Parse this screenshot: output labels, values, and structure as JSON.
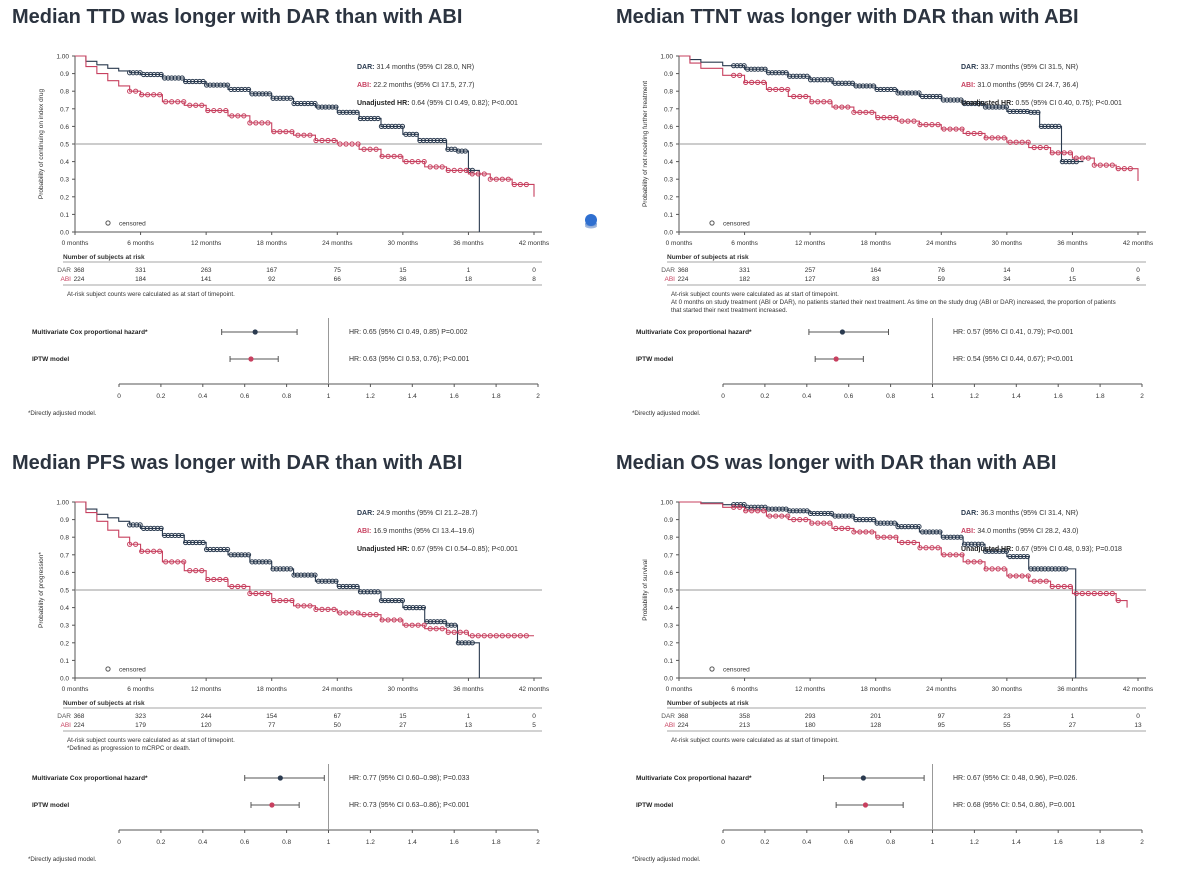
{
  "colors": {
    "dar": "#2a3a4f",
    "abi": "#c7405f",
    "axis": "#555555",
    "ref": "#999999"
  },
  "labels": {
    "censored": "censored",
    "at_risk_header": "Number of subjects at risk",
    "arm_dar": "DAR",
    "arm_abi": "ABI",
    "mvcox": "Multivariate Cox proportional hazard*",
    "iptw": "IPTW model",
    "footnote": "*Directly adjusted model.",
    "atrisk_note": "At-risk subject counts were calculated as at start of timepoint."
  },
  "panels": [
    {
      "title": "Median TTD was longer with DAR than with ABI",
      "ylabel": "Probability of continuing on index drug",
      "legend": [
        {
          "arm": "DAR:",
          "text": " 31.4 months (95% CI 28.0, NR)"
        },
        {
          "arm": "ABI:",
          "text": " 22.2 months (95% CI 17.5, 27.7)"
        },
        {
          "arm": "Unadjusted HR:",
          "text": " 0.64 (95% CI 0.49, 0.82); P<0.001"
        }
      ],
      "chart_data": {
        "type": "line",
        "xlabel": "",
        "ylim": [
          0,
          1
        ],
        "xlim": [
          0,
          42
        ],
        "x_ticks": [
          "0 months",
          "6 months",
          "12 months",
          "18 months",
          "24 months",
          "30 months",
          "36 months",
          "42 months"
        ],
        "series": [
          {
            "name": "DAR",
            "x": [
              0,
              1,
              2,
              3,
              4,
              5,
              6,
              8,
              10,
              12,
              14,
              16,
              18,
              20,
              22,
              24,
              26,
              28,
              30,
              31.4,
              33,
              34,
              35,
              36,
              37
            ],
            "y": [
              1,
              0.97,
              0.95,
              0.93,
              0.915,
              0.905,
              0.895,
              0.875,
              0.855,
              0.835,
              0.81,
              0.785,
              0.76,
              0.73,
              0.71,
              0.68,
              0.645,
              0.6,
              0.555,
              0.52,
              0.52,
              0.47,
              0.46,
              0.35,
              0.0
            ]
          },
          {
            "name": "ABI",
            "x": [
              0,
              1,
              2,
              3,
              4,
              5,
              6,
              8,
              10,
              12,
              14,
              16,
              18,
              20,
              22,
              24,
              26,
              28,
              30,
              32,
              34,
              36,
              38,
              40,
              42
            ],
            "y": [
              1,
              0.94,
              0.9,
              0.86,
              0.83,
              0.8,
              0.78,
              0.74,
              0.72,
              0.69,
              0.66,
              0.62,
              0.57,
              0.55,
              0.52,
              0.5,
              0.47,
              0.43,
              0.4,
              0.37,
              0.35,
              0.33,
              0.3,
              0.27,
              0.2
            ]
          }
        ]
      },
      "at_risk": {
        "DAR": [
          "368",
          "331",
          "263",
          "167",
          "75",
          "15",
          "1",
          "0"
        ],
        "ABI": [
          "224",
          "184",
          "141",
          "92",
          "66",
          "36",
          "18",
          "8"
        ]
      },
      "notes": [
        "At-risk subject counts were calculated as at start of timepoint."
      ],
      "forest": {
        "xlim": [
          0,
          2
        ],
        "ticks": [
          "0",
          "0.2",
          "0.4",
          "0.6",
          "0.8",
          "1",
          "1.2",
          "1.4",
          "1.6",
          "1.8",
          "2"
        ],
        "rows": [
          {
            "hr": 0.65,
            "lo": 0.49,
            "hi": 0.85,
            "text": "HR: 0.65 (95% CI 0.49, 0.85) P=0.002"
          },
          {
            "hr": 0.63,
            "lo": 0.53,
            "hi": 0.76,
            "text": "HR: 0.63 (95% CI 0.53, 0.76); P<0.001"
          }
        ]
      }
    },
    {
      "title": "Median TTNT was longer with DAR than with ABI",
      "ylabel": "Probability of not receiving further treatment",
      "legend": [
        {
          "arm": "DAR:",
          "text": " 33.7 months (95% CI 31.5, NR)"
        },
        {
          "arm": "ABI:",
          "text": " 31.0 months (95% CI 24.7, 36.4)"
        },
        {
          "arm": "Unadjusted HR:",
          "text": " 0.55 (95% CI 0.40, 0.75); P<0.001"
        }
      ],
      "chart_data": {
        "type": "line",
        "xlabel": "",
        "ylim": [
          0,
          1
        ],
        "xlim": [
          0,
          42
        ],
        "x_ticks": [
          "0 months",
          "6 months",
          "12 months",
          "18 months",
          "24 months",
          "30 months",
          "36 months",
          "42 months"
        ],
        "series": [
          {
            "name": "DAR",
            "x": [
              0,
              1,
              2,
              4,
              6,
              8,
              10,
              12,
              14,
              16,
              18,
              20,
              22,
              24,
              26,
              28,
              30,
              32,
              33,
              34,
              35,
              36,
              37
            ],
            "y": [
              1,
              0.98,
              0.965,
              0.945,
              0.925,
              0.905,
              0.885,
              0.865,
              0.845,
              0.83,
              0.81,
              0.79,
              0.77,
              0.75,
              0.73,
              0.71,
              0.685,
              0.68,
              0.6,
              0.6,
              0.4,
              0.4,
              0.4
            ]
          },
          {
            "name": "ABI",
            "x": [
              0,
              1,
              2,
              4,
              6,
              8,
              10,
              12,
              14,
              16,
              18,
              20,
              22,
              24,
              26,
              28,
              30,
              32,
              34,
              36,
              38,
              40,
              42
            ],
            "y": [
              1,
              0.96,
              0.93,
              0.89,
              0.85,
              0.81,
              0.77,
              0.74,
              0.71,
              0.68,
              0.65,
              0.63,
              0.61,
              0.585,
              0.56,
              0.535,
              0.51,
              0.48,
              0.45,
              0.42,
              0.38,
              0.36,
              0.29
            ]
          }
        ]
      },
      "at_risk": {
        "DAR": [
          "368",
          "331",
          "257",
          "164",
          "76",
          "14",
          "0",
          "0"
        ],
        "ABI": [
          "224",
          "182",
          "127",
          "83",
          "59",
          "34",
          "15",
          "6"
        ]
      },
      "notes": [
        "At-risk subject counts were calculated as at start of timepoint.",
        "At 0 months on study treatment (ABI or DAR), no patients started their next treatment. As time on the study drug (ABI or DAR) increased, the proportion of patients",
        "that started their next treatment increased."
      ],
      "forest": {
        "xlim": [
          0,
          2
        ],
        "ticks": [
          "0",
          "0.2",
          "0.4",
          "0.6",
          "0.8",
          "1",
          "1.2",
          "1.4",
          "1.6",
          "1.8",
          "2"
        ],
        "rows": [
          {
            "hr": 0.57,
            "lo": 0.41,
            "hi": 0.79,
            "text": "HR: 0.57 (95% CI 0.41, 0.79); P<0.001"
          },
          {
            "hr": 0.54,
            "lo": 0.44,
            "hi": 0.67,
            "text": "HR: 0.54 (95% CI 0.44, 0.67); P<0.001"
          }
        ]
      }
    },
    {
      "title": "Median PFS was longer with DAR than with ABI",
      "ylabel": "Probability of progression*",
      "legend": [
        {
          "arm": "DAR:",
          "text": " 24.9 months (95% CI 21.2–28.7)"
        },
        {
          "arm": "ABI:",
          "text": " 16.9 months (95% CI 13.4–19.6)"
        },
        {
          "arm": "Unadjusted HR:",
          "text": " 0.67 (95% CI 0.54–0.85); P<0.001"
        }
      ],
      "chart_data": {
        "type": "line",
        "xlabel": "",
        "ylim": [
          0,
          1
        ],
        "xlim": [
          0,
          42
        ],
        "x_ticks": [
          "0 months",
          "6 months",
          "12 months",
          "18 months",
          "24 months",
          "30 months",
          "36 months",
          "42 months"
        ],
        "series": [
          {
            "name": "DAR",
            "x": [
              0,
              1,
              2,
              3,
              4,
              5,
              6,
              8,
              10,
              12,
              14,
              16,
              18,
              20,
              22,
              24,
              26,
              28,
              30,
              31,
              32,
              33,
              34,
              35,
              36,
              37
            ],
            "y": [
              1,
              0.96,
              0.93,
              0.91,
              0.89,
              0.87,
              0.85,
              0.81,
              0.77,
              0.73,
              0.7,
              0.66,
              0.62,
              0.585,
              0.55,
              0.52,
              0.49,
              0.44,
              0.4,
              0.4,
              0.32,
              0.32,
              0.3,
              0.2,
              0.2,
              0.0
            ]
          },
          {
            "name": "ABI",
            "x": [
              0,
              1,
              2,
              3,
              4,
              5,
              6,
              8,
              10,
              12,
              14,
              16,
              18,
              20,
              22,
              24,
              26,
              28,
              30,
              32,
              34,
              36,
              38,
              40,
              42
            ],
            "y": [
              1,
              0.94,
              0.89,
              0.84,
              0.8,
              0.76,
              0.72,
              0.66,
              0.61,
              0.56,
              0.52,
              0.48,
              0.44,
              0.41,
              0.39,
              0.37,
              0.36,
              0.33,
              0.3,
              0.28,
              0.26,
              0.24,
              0.24,
              0.24,
              0.24
            ]
          }
        ]
      },
      "at_risk": {
        "DAR": [
          "368",
          "323",
          "244",
          "154",
          "67",
          "15",
          "1",
          "0"
        ],
        "ABI": [
          "224",
          "179",
          "120",
          "77",
          "50",
          "27",
          "13",
          "5"
        ]
      },
      "notes": [
        "At-risk subject counts were calculated as at start of timepoint.",
        "*Defined as progression to mCRPC or death."
      ],
      "forest": {
        "xlim": [
          0,
          2
        ],
        "ticks": [
          "0",
          "0.2",
          "0.4",
          "0.6",
          "0.8",
          "1",
          "1.2",
          "1.4",
          "1.6",
          "1.8",
          "2"
        ],
        "rows": [
          {
            "hr": 0.77,
            "lo": 0.6,
            "hi": 0.98,
            "text": "HR: 0.77 (95% CI 0.60–0.98); P=0.033"
          },
          {
            "hr": 0.73,
            "lo": 0.63,
            "hi": 0.86,
            "text": "HR: 0.73 (95% CI 0.63–0.86); P<0.001"
          }
        ]
      }
    },
    {
      "title": "Median OS was longer with DAR than with ABI",
      "ylabel": "Probability of survival",
      "legend": [
        {
          "arm": "DAR:",
          "text": " 36.3 months (95% CI 31.4, NR)"
        },
        {
          "arm": "ABI:",
          "text": " 34.0 months (95% CI 28.2, 43.0)"
        },
        {
          "arm": "Unadjusted HR:",
          "text": " 0.67 (95% CI 0.48, 0.93); P=0.018"
        }
      ],
      "chart_data": {
        "type": "line",
        "xlabel": "",
        "ylim": [
          0,
          1
        ],
        "xlim": [
          0,
          42
        ],
        "x_ticks": [
          "0 months",
          "6 months",
          "12 months",
          "18 months",
          "24 months",
          "30 months",
          "36 months",
          "42 months"
        ],
        "series": [
          {
            "name": "DAR",
            "x": [
              0,
              2,
              4,
              6,
              8,
              10,
              12,
              14,
              16,
              18,
              20,
              22,
              24,
              26,
              28,
              30,
              32,
              34,
              36,
              36.3
            ],
            "y": [
              1,
              0.995,
              0.985,
              0.97,
              0.96,
              0.95,
              0.935,
              0.92,
              0.9,
              0.88,
              0.86,
              0.83,
              0.8,
              0.76,
              0.72,
              0.69,
              0.62,
              0.62,
              0.62,
              0.0
            ]
          },
          {
            "name": "ABI",
            "x": [
              0,
              2,
              4,
              6,
              8,
              10,
              12,
              14,
              16,
              18,
              20,
              22,
              24,
              26,
              28,
              30,
              32,
              34,
              36,
              38,
              40,
              41
            ],
            "y": [
              1,
              0.99,
              0.97,
              0.95,
              0.92,
              0.9,
              0.88,
              0.85,
              0.83,
              0.8,
              0.77,
              0.74,
              0.7,
              0.66,
              0.62,
              0.58,
              0.55,
              0.52,
              0.48,
              0.48,
              0.44,
              0.4
            ]
          }
        ]
      },
      "at_risk": {
        "DAR": [
          "368",
          "358",
          "293",
          "201",
          "97",
          "23",
          "1",
          "0"
        ],
        "ABI": [
          "224",
          "213",
          "180",
          "128",
          "95",
          "55",
          "27",
          "13"
        ]
      },
      "notes": [
        "At-risk subject counts were calculated as at start of timepoint."
      ],
      "forest": {
        "xlim": [
          0,
          2
        ],
        "ticks": [
          "0",
          "0.2",
          "0.4",
          "0.6",
          "0.8",
          "1",
          "1.2",
          "1.4",
          "1.6",
          "1.8",
          "2"
        ],
        "rows": [
          {
            "hr": 0.67,
            "lo": 0.48,
            "hi": 0.96,
            "text": "HR: 0.67 (95% CI: 0.48, 0.96), P=0.026."
          },
          {
            "hr": 0.68,
            "lo": 0.54,
            "hi": 0.86,
            "text": "HR: 0.68 (95% CI: 0.54, 0.86), P=0.001"
          }
        ]
      }
    }
  ]
}
